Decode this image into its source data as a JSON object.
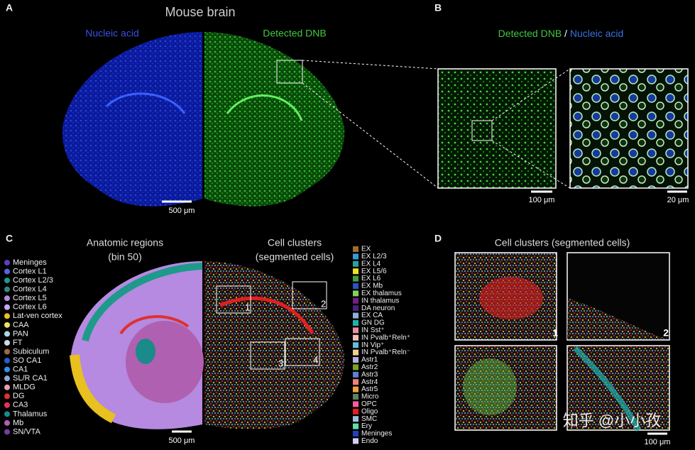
{
  "panels": {
    "a": {
      "letter": "A",
      "title": "Mouse brain",
      "left_label": "Nucleic acid",
      "right_label": "Detected DNB",
      "scale": "500 μm"
    },
    "b": {
      "letter": "B",
      "title_green": "Detected DNB",
      "separator": "/",
      "title_blue": "Nucleic acid",
      "scale_left": "100 μm",
      "scale_right": "20 μm"
    },
    "c": {
      "letter": "C",
      "left_title": "Anatomic regions",
      "left_subtitle": "(bin 50)",
      "right_title": "Cell clusters",
      "right_subtitle": "(segmented cells)",
      "scale": "500 μm",
      "boxes": [
        "1",
        "2",
        "3",
        "4"
      ],
      "regions": [
        {
          "label": "Meninges",
          "color": "#5a3fc0"
        },
        {
          "label": "Cortex L1",
          "color": "#5566dd"
        },
        {
          "label": "Cortex L2/3",
          "color": "#1e9a8a"
        },
        {
          "label": "Cortex L4",
          "color": "#2f8a7a"
        },
        {
          "label": "Cortex L5",
          "color": "#b58ae0"
        },
        {
          "label": "Cortex L6",
          "color": "#c8a8f0"
        },
        {
          "label": "Lat-ven cortex",
          "color": "#e8c020"
        },
        {
          "label": "CAA",
          "color": "#f0e060"
        },
        {
          "label": "PAN",
          "color": "#a8d8e8"
        },
        {
          "label": "FT",
          "color": "#d0d8e8"
        },
        {
          "label": "Subiculum",
          "color": "#9a6a40"
        },
        {
          "label": "SO CA1",
          "color": "#2060d0"
        },
        {
          "label": "CA1",
          "color": "#3090f0"
        },
        {
          "label": "SL/R CA1",
          "color": "#90a8d0"
        },
        {
          "label": "MLDG",
          "color": "#e8a0b0"
        },
        {
          "label": "DG",
          "color": "#e03030"
        },
        {
          "label": "CA3",
          "color": "#e83060"
        },
        {
          "label": "Thalamus",
          "color": "#1a8a8a"
        },
        {
          "label": "Mb",
          "color": "#b060b0"
        },
        {
          "label": "SN/VTA",
          "color": "#7040a0"
        }
      ],
      "clusters": [
        {
          "label": "EX",
          "color": "#a06a30"
        },
        {
          "label": "EX L2/3",
          "color": "#3a9ad0"
        },
        {
          "label": "EX L4",
          "color": "#2aa0a0"
        },
        {
          "label": "EX L5/6",
          "color": "#f0e020"
        },
        {
          "label": "EX L6",
          "color": "#40a040"
        },
        {
          "label": "EX Mb",
          "color": "#3050c0"
        },
        {
          "label": "EX thalamus",
          "color": "#80d060"
        },
        {
          "label": "IN thalamus",
          "color": "#702080"
        },
        {
          "label": "DA neuron",
          "color": "#4a2080"
        },
        {
          "label": "EX CA",
          "color": "#90b0d0"
        },
        {
          "label": "GN DG",
          "color": "#20b0b0"
        },
        {
          "label": "IN Sst⁺",
          "color": "#e890a0"
        },
        {
          "label": "IN Pvalb⁺Reln⁺",
          "color": "#f0c0c0"
        },
        {
          "label": "IN Vip⁺",
          "color": "#60c0e0"
        },
        {
          "label": "IN Pvalb⁺Reln⁻",
          "color": "#f0d090"
        },
        {
          "label": "Astr1",
          "color": "#b0b0e0"
        },
        {
          "label": "Astr2",
          "color": "#80a020"
        },
        {
          "label": "Astr3",
          "color": "#6080d0"
        },
        {
          "label": "Astr4",
          "color": "#f08080"
        },
        {
          "label": "Astr5",
          "color": "#f0a040"
        },
        {
          "label": "Micro",
          "color": "#608060"
        },
        {
          "label": "OPC",
          "color": "#f060a0"
        },
        {
          "label": "Oligo",
          "color": "#e02020"
        },
        {
          "label": "SMC",
          "color": "#a0c0e0"
        },
        {
          "label": "Ery",
          "color": "#60e0a0"
        },
        {
          "label": "Meninges",
          "color": "#2040c0"
        },
        {
          "label": "Endo",
          "color": "#d0d0f0"
        }
      ]
    },
    "d": {
      "letter": "D",
      "title": "Cell clusters (segmented cells)",
      "tiles": [
        "1",
        "2"
      ],
      "scale": "100 μm"
    }
  },
  "watermark": "知乎 @小小孜"
}
